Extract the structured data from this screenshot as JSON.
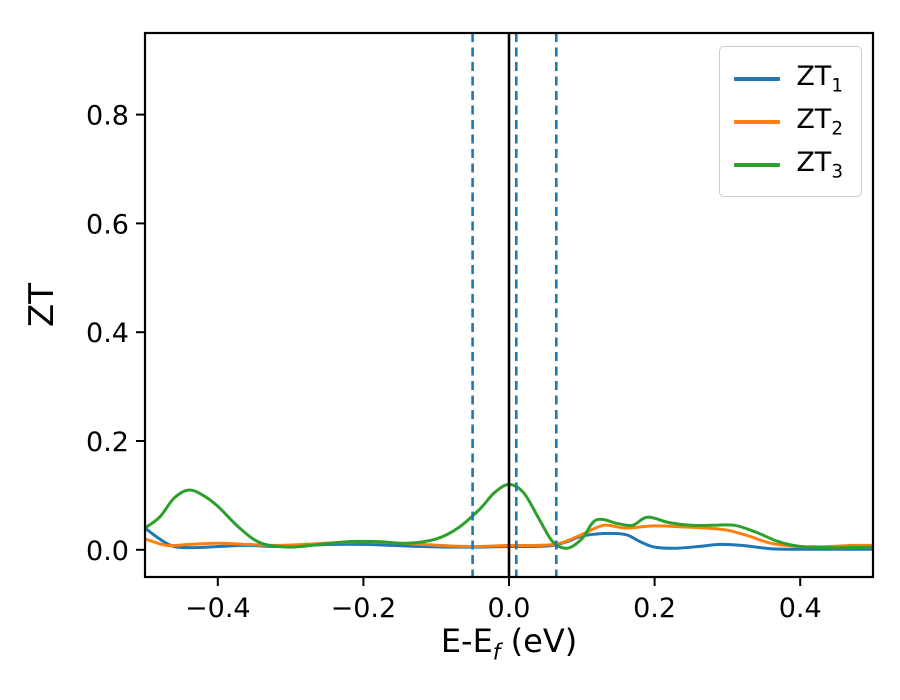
{
  "chart_data": {
    "type": "line",
    "title": "",
    "xlabel_prefix": "E-E",
    "xlabel_sub": "f",
    "xlabel_suffix": " (eV)",
    "ylabel": "ZT",
    "xlim": [
      -0.5,
      0.5
    ],
    "ylim": [
      -0.05,
      0.95
    ],
    "xticks": [
      -0.4,
      -0.2,
      0.0,
      0.2,
      0.4
    ],
    "xtick_labels": [
      "−0.4",
      "−0.2",
      "0.0",
      "0.2",
      "0.4"
    ],
    "yticks": [
      0.0,
      0.2,
      0.4,
      0.6,
      0.8
    ],
    "ytick_labels": [
      "0.0",
      "0.2",
      "0.4",
      "0.6",
      "0.8"
    ],
    "grid": false,
    "legend_position": "upper right",
    "series": [
      {
        "name": "ZT1",
        "label": "ZT",
        "label_sub": "1",
        "color": "#1f77b4",
        "x": [
          -0.5,
          -0.48,
          -0.46,
          -0.43,
          -0.4,
          -0.36,
          -0.32,
          -0.28,
          -0.24,
          -0.2,
          -0.16,
          -0.12,
          -0.08,
          -0.04,
          0.0,
          0.03,
          0.06,
          0.08,
          0.1,
          0.13,
          0.16,
          0.18,
          0.2,
          0.23,
          0.26,
          0.29,
          0.32,
          0.36,
          0.4,
          0.45,
          0.5
        ],
        "y": [
          0.04,
          0.02,
          0.006,
          0.004,
          0.006,
          0.008,
          0.006,
          0.008,
          0.01,
          0.01,
          0.008,
          0.006,
          0.005,
          0.005,
          0.006,
          0.006,
          0.008,
          0.015,
          0.025,
          0.03,
          0.028,
          0.015,
          0.005,
          0.003,
          0.006,
          0.01,
          0.008,
          0.002,
          0.001,
          0.001,
          0.001
        ]
      },
      {
        "name": "ZT2",
        "label": "ZT",
        "label_sub": "2",
        "color": "#ff7f0e",
        "x": [
          -0.5,
          -0.47,
          -0.44,
          -0.4,
          -0.36,
          -0.32,
          -0.28,
          -0.24,
          -0.2,
          -0.16,
          -0.12,
          -0.08,
          -0.04,
          0.0,
          0.04,
          0.07,
          0.1,
          0.13,
          0.16,
          0.2,
          0.24,
          0.27,
          0.3,
          0.33,
          0.36,
          0.4,
          0.44,
          0.47,
          0.5
        ],
        "y": [
          0.02,
          0.008,
          0.01,
          0.012,
          0.01,
          0.008,
          0.01,
          0.013,
          0.015,
          0.013,
          0.01,
          0.007,
          0.006,
          0.008,
          0.008,
          0.012,
          0.028,
          0.045,
          0.04,
          0.044,
          0.042,
          0.04,
          0.036,
          0.025,
          0.012,
          0.006,
          0.006,
          0.008,
          0.008
        ]
      },
      {
        "name": "ZT3",
        "label": "ZT",
        "label_sub": "3",
        "color": "#2ca02c",
        "x": [
          -0.5,
          -0.48,
          -0.46,
          -0.44,
          -0.42,
          -0.4,
          -0.37,
          -0.34,
          -0.3,
          -0.26,
          -0.22,
          -0.18,
          -0.14,
          -0.1,
          -0.07,
          -0.04,
          -0.02,
          0.0,
          0.02,
          0.04,
          0.06,
          0.08,
          0.1,
          0.12,
          0.15,
          0.17,
          0.19,
          0.22,
          0.25,
          0.28,
          0.31,
          0.34,
          0.37,
          0.4,
          0.44,
          0.47,
          0.5
        ],
        "y": [
          0.04,
          0.06,
          0.095,
          0.11,
          0.1,
          0.08,
          0.04,
          0.012,
          0.005,
          0.01,
          0.015,
          0.015,
          0.012,
          0.02,
          0.04,
          0.075,
          0.105,
          0.12,
          0.105,
          0.06,
          0.015,
          0.003,
          0.02,
          0.055,
          0.048,
          0.045,
          0.06,
          0.05,
          0.045,
          0.045,
          0.045,
          0.032,
          0.015,
          0.006,
          0.004,
          0.004,
          0.005
        ]
      }
    ],
    "vlines": [
      {
        "x": 0.0,
        "color": "#000000",
        "style": "solid"
      },
      {
        "x": -0.05,
        "color": "#1f77b4",
        "style": "dashed"
      },
      {
        "x": 0.01,
        "color": "#1f77b4",
        "style": "dashed"
      },
      {
        "x": 0.065,
        "color": "#1f77b4",
        "style": "dashed"
      }
    ]
  }
}
